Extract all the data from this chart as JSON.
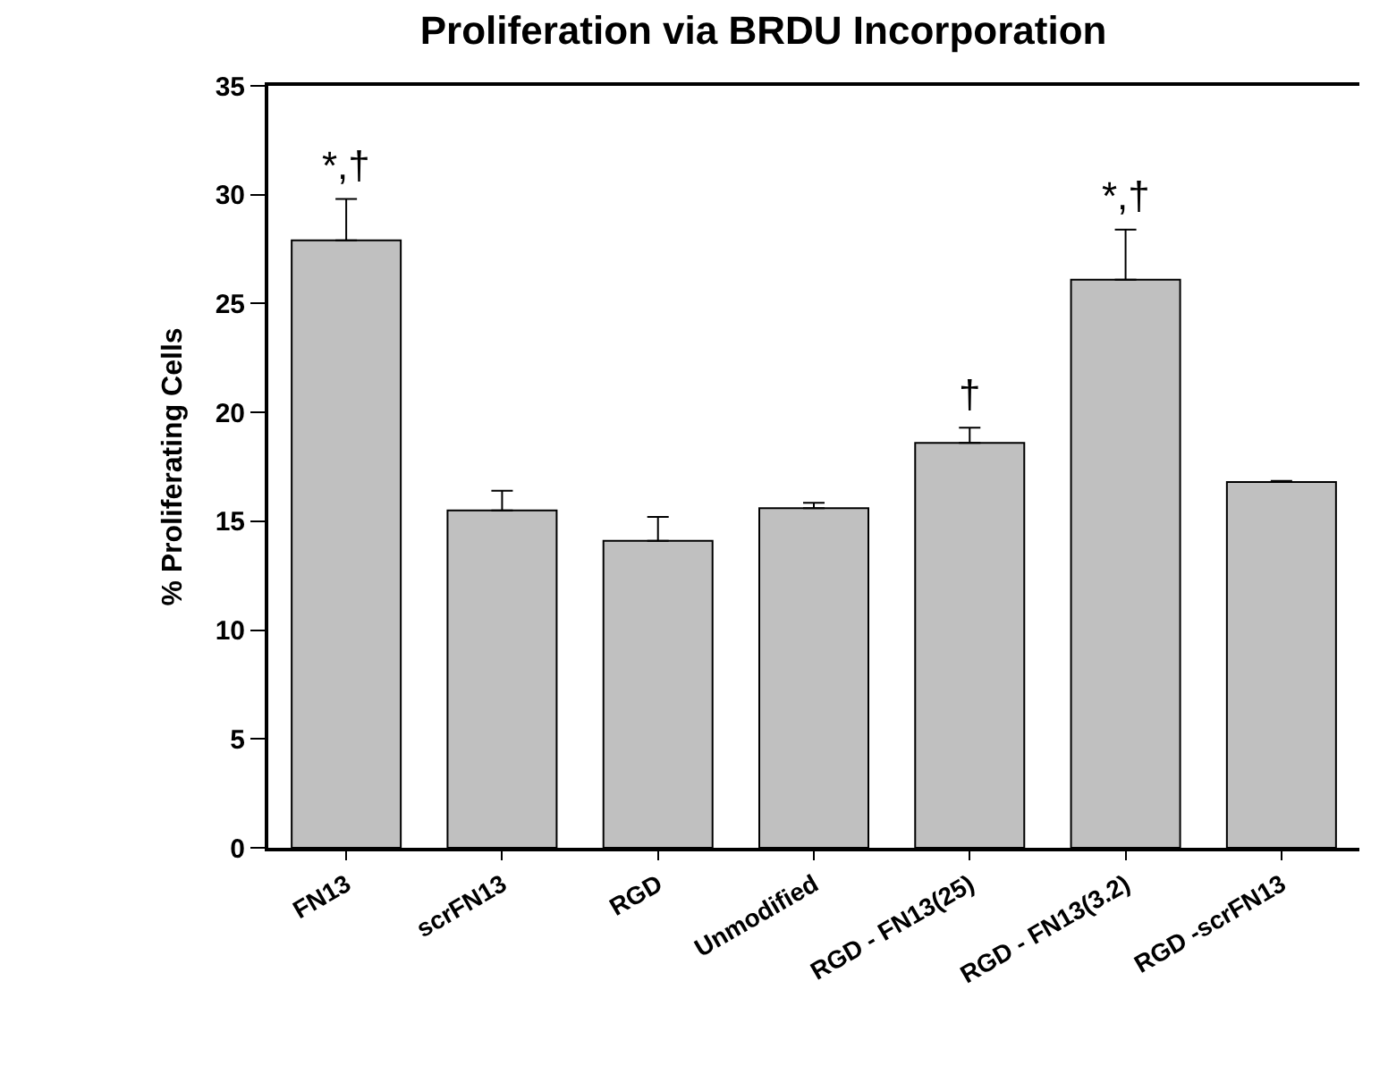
{
  "chart_data": {
    "type": "bar",
    "title": "Proliferation via BRDU Incorporation",
    "ylabel": "% Proliferating Cells",
    "categories": [
      "FN13",
      "scrFN13",
      "RGD",
      "Unmodified",
      "RGD - FN13(25)",
      "RGD - FN13(3.2)",
      "RGD -scrFN13"
    ],
    "values": [
      27.9,
      15.5,
      14.1,
      15.6,
      18.6,
      26.1,
      16.8
    ],
    "errors": [
      1.9,
      0.9,
      1.1,
      0.25,
      0.7,
      2.3,
      0.05
    ],
    "color": "#c0c0c0",
    "ylim": [
      0,
      35
    ],
    "yticks": [
      0,
      5,
      10,
      15,
      20,
      25,
      30,
      35
    ],
    "grid": false,
    "legend": false,
    "annotations": [
      {
        "text": "*,†",
        "x": "FN13",
        "y": 29.8
      },
      {
        "text": "†",
        "x": "RGD - FN13(25)",
        "y": 19.3
      },
      {
        "text": "*,†",
        "x": "RGD - FN13(3.2)",
        "y": 28.4
      }
    ]
  }
}
